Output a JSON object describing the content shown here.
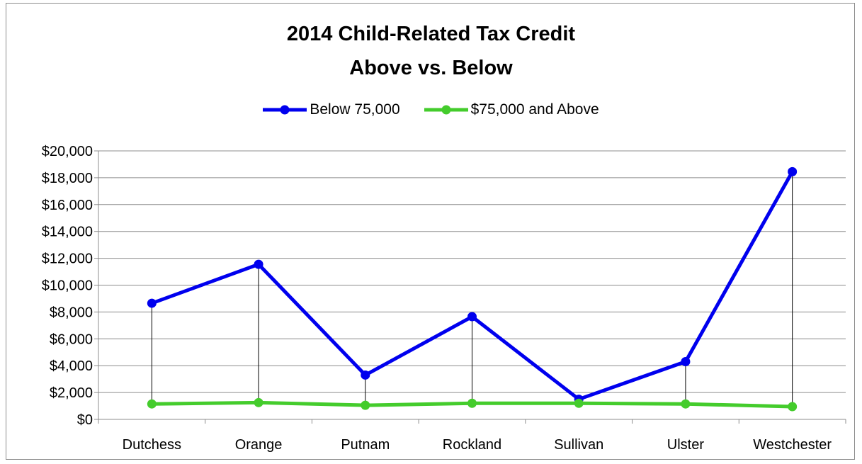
{
  "chart_data": {
    "type": "line",
    "title_line1": "2014 Child-Related Tax Credit",
    "title_line2": "Above vs. Below",
    "xlabel": "",
    "ylabel": "",
    "categories": [
      "Dutchess",
      "Orange",
      "Putnam",
      "Rockland",
      "Sullivan",
      "Ulster",
      "Westchester"
    ],
    "series": [
      {
        "name": "Below 75,000",
        "color": "#0000ee",
        "values": [
          8650,
          11550,
          3300,
          7650,
          1500,
          4300,
          18450
        ]
      },
      {
        "name": "$75,000 and Above",
        "color": "#44cc2c",
        "values": [
          1150,
          1250,
          1050,
          1200,
          1200,
          1150,
          950
        ]
      }
    ],
    "ylim": [
      0,
      20000
    ],
    "yticks": [
      "$0",
      "$2,000",
      "$4,000",
      "$6,000",
      "$8,000",
      "$10,000",
      "$12,000",
      "$14,000",
      "$16,000",
      "$18,000",
      "$20,000"
    ],
    "ytick_values": [
      0,
      2000,
      4000,
      6000,
      8000,
      10000,
      12000,
      14000,
      16000,
      18000,
      20000
    ],
    "grid": true,
    "high_low_lines": true,
    "legend_position": "top"
  }
}
